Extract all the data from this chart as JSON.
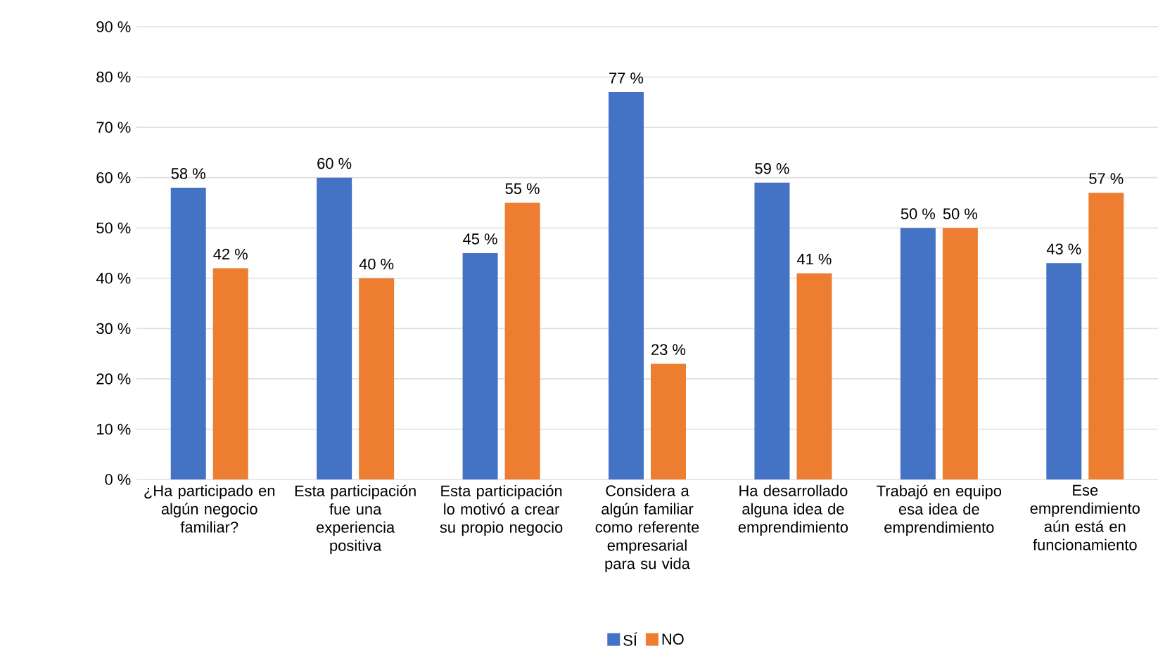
{
  "chart_data": {
    "type": "bar",
    "categories": [
      "¿Ha participado en algún negocio familiar?",
      "Esta participación fue una experiencia positiva",
      "Esta participación lo motivó a crear su propio negocio",
      "Considera a algún familiar como referente empresarial para su vida",
      "Ha desarrollado alguna idea de emprendimiento",
      "Trabajó en equipo esa idea de emprendimiento",
      "Ese emprendimiento aún está en funcionamiento"
    ],
    "series": [
      {
        "name": "SÍ",
        "color": "#4472c4",
        "values": [
          58,
          60,
          45,
          77,
          59,
          50,
          43
        ],
        "value_labels": [
          "58 %",
          "60 %",
          "45 %",
          "77 %",
          "59 %",
          "50 %",
          "43 %"
        ]
      },
      {
        "name": "NO",
        "color": "#ed7d31",
        "values": [
          42,
          40,
          55,
          23,
          41,
          50,
          57
        ],
        "value_labels": [
          "42 %",
          "40 %",
          "55 %",
          "23 %",
          "41 %",
          "50 %",
          "57 %"
        ]
      }
    ],
    "ylim": [
      0,
      90
    ],
    "yticks": [
      {
        "value": 0,
        "label": "0 %"
      },
      {
        "value": 10,
        "label": "10 %"
      },
      {
        "value": 20,
        "label": "20 %"
      },
      {
        "value": 30,
        "label": "30 %"
      },
      {
        "value": 40,
        "label": "40 %"
      },
      {
        "value": 50,
        "label": "50 %"
      },
      {
        "value": 60,
        "label": "60 %"
      },
      {
        "value": 70,
        "label": "70 %"
      },
      {
        "value": 80,
        "label": "80 %"
      },
      {
        "value": 90,
        "label": "90 %"
      }
    ],
    "grid": "y",
    "legend": "bottom"
  }
}
